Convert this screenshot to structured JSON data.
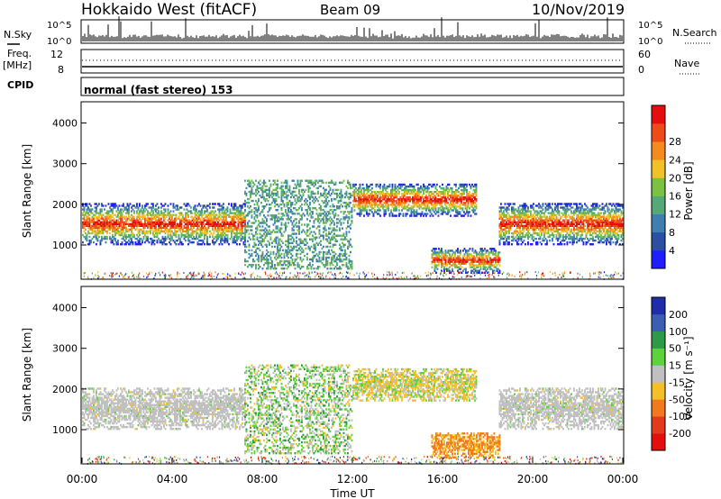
{
  "header": {
    "station": "Hokkaido West (fitACF)",
    "beam": "Beam 09",
    "date": "10/Nov/2019"
  },
  "summary_panel": {
    "left_labels": {
      "nsky": "N.Sky",
      "freq_line1": "Freq.",
      "freq_line2": "[MHz]",
      "cpid": "CPID"
    },
    "right_labels": {
      "nsearch": "N.Search",
      "nave": "Nave"
    },
    "noise_ticks": {
      "top": "10^5",
      "bottom": "10^0"
    },
    "freq_ticks": {
      "top": "12",
      "bottom": "8"
    },
    "nave_ticks": {
      "top": "60",
      "bottom": "0"
    },
    "cpid_text": "normal (fast stereo) 153"
  },
  "chart_data": [
    {
      "type": "heatmap",
      "name": "power",
      "ylabel": "Slant Range [km]",
      "xlabel": "",
      "ylim": [
        180,
        4500
      ],
      "xlim": [
        0,
        24
      ],
      "yticks": [
        "1000",
        "2000",
        "3000",
        "4000"
      ],
      "colorbar": {
        "label": "Power [dB]",
        "ticks": [
          "4",
          "8",
          "12",
          "16",
          "20",
          "24",
          "28"
        ],
        "colors": [
          "#1e1eff",
          "#2b4fa3",
          "#3f7fb0",
          "#56a877",
          "#7cc142",
          "#f2c12a",
          "#f58a1f",
          "#ee4b1b",
          "#e40e0e"
        ]
      },
      "echo_regions": [
        {
          "t": [
            0.0,
            7.2
          ],
          "range_km": [
            1000,
            2000
          ],
          "level": "strong"
        },
        {
          "t": [
            7.2,
            12.0
          ],
          "range_km": [
            400,
            2600
          ],
          "level": "weak"
        },
        {
          "t": [
            12.0,
            17.5
          ],
          "range_km": [
            1700,
            2500
          ],
          "level": "strong"
        },
        {
          "t": [
            15.5,
            18.5
          ],
          "range_km": [
            300,
            900
          ],
          "level": "strong"
        },
        {
          "t": [
            18.5,
            24.0
          ],
          "range_km": [
            1000,
            2000
          ],
          "level": "strong"
        }
      ]
    },
    {
      "type": "heatmap",
      "name": "velocity",
      "ylabel": "Slant Range [km]",
      "xlabel": "Time UT",
      "ylim": [
        180,
        4500
      ],
      "xlim": [
        0,
        24
      ],
      "yticks": [
        "1000",
        "2000",
        "3000",
        "4000"
      ],
      "xticks": [
        "00:00",
        "04:00",
        "08:00",
        "12:00",
        "16:00",
        "20:00",
        "00:00"
      ],
      "colorbar": {
        "label": "Velocity [m s⁻¹]",
        "ticks": [
          "200",
          "100",
          "50",
          "15",
          "-15",
          "-50",
          "-100",
          "-200"
        ],
        "colors": [
          "#1f2ea8",
          "#3a5fb0",
          "#2e9a49",
          "#5fd13a",
          "#c0c0c0",
          "#f3c02a",
          "#f07a1d",
          "#e23a1c",
          "#e40e0e"
        ]
      },
      "echo_regions": [
        {
          "t": [
            0.0,
            7.2
          ],
          "range_km": [
            1000,
            2000
          ],
          "level": "ground"
        },
        {
          "t": [
            7.2,
            12.0
          ],
          "range_km": [
            400,
            2600
          ],
          "level": "mixed"
        },
        {
          "t": [
            12.0,
            17.5
          ],
          "range_km": [
            1700,
            2500
          ],
          "level": "positive"
        },
        {
          "t": [
            15.5,
            18.5
          ],
          "range_km": [
            300,
            900
          ],
          "level": "negative"
        },
        {
          "t": [
            18.5,
            24.0
          ],
          "range_km": [
            1000,
            2000
          ],
          "level": "ground"
        }
      ]
    }
  ]
}
